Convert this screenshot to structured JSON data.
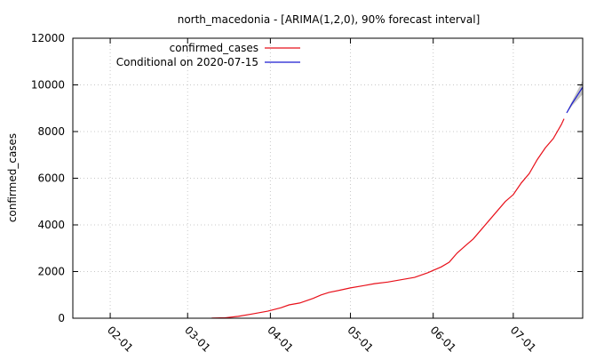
{
  "chart_data": {
    "type": "line",
    "title": "north_macedonia -  [ARIMA(1,2,0), 90% forecast interval]",
    "xlabel": "",
    "ylabel": "confirmed_cases",
    "xlim": [
      "2020-01-18",
      "2020-07-27"
    ],
    "ylim": [
      0,
      12000
    ],
    "y_ticks": [
      0,
      2000,
      4000,
      6000,
      8000,
      10000,
      12000
    ],
    "x_ticks": [
      {
        "date": "2020-02-01",
        "label": "02-01"
      },
      {
        "date": "2020-03-01",
        "label": "03-01"
      },
      {
        "date": "2020-04-01",
        "label": "04-01"
      },
      {
        "date": "2020-05-01",
        "label": "05-01"
      },
      {
        "date": "2020-06-01",
        "label": "06-01"
      },
      {
        "date": "2020-07-01",
        "label": "07-01"
      }
    ],
    "grid": true,
    "legend_position": "top-left",
    "series": [
      {
        "name": "confirmed_cases",
        "color": "#e8101a",
        "points": [
          [
            "2020-03-10",
            5
          ],
          [
            "2020-03-15",
            20
          ],
          [
            "2020-03-20",
            80
          ],
          [
            "2020-03-25",
            180
          ],
          [
            "2020-03-31",
            300
          ],
          [
            "2020-04-05",
            450
          ],
          [
            "2020-04-08",
            570
          ],
          [
            "2020-04-12",
            650
          ],
          [
            "2020-04-17",
            850
          ],
          [
            "2020-04-20",
            1000
          ],
          [
            "2020-04-23",
            1110
          ],
          [
            "2020-04-27",
            1200
          ],
          [
            "2020-05-01",
            1300
          ],
          [
            "2020-05-06",
            1400
          ],
          [
            "2020-05-10",
            1480
          ],
          [
            "2020-05-15",
            1550
          ],
          [
            "2020-05-20",
            1650
          ],
          [
            "2020-05-25",
            1750
          ],
          [
            "2020-05-30",
            1950
          ],
          [
            "2020-06-01",
            2050
          ],
          [
            "2020-06-04",
            2200
          ],
          [
            "2020-06-07",
            2400
          ],
          [
            "2020-06-10",
            2800
          ],
          [
            "2020-06-13",
            3100
          ],
          [
            "2020-06-16",
            3400
          ],
          [
            "2020-06-19",
            3800
          ],
          [
            "2020-06-22",
            4200
          ],
          [
            "2020-06-25",
            4600
          ],
          [
            "2020-06-28",
            5000
          ],
          [
            "2020-07-01",
            5300
          ],
          [
            "2020-07-04",
            5800
          ],
          [
            "2020-07-07",
            6200
          ],
          [
            "2020-07-10",
            6800
          ],
          [
            "2020-07-13",
            7300
          ],
          [
            "2020-07-16",
            7700
          ],
          [
            "2020-07-19",
            8300
          ],
          [
            "2020-07-20",
            8550
          ]
        ]
      },
      {
        "name": "Conditional on 2020-07-15",
        "color": "#1a1ad0",
        "interval_color": "#b4b4b4",
        "points": [
          [
            "2020-07-21",
            8800
          ],
          [
            "2020-07-23",
            9200
          ],
          [
            "2020-07-25",
            9550
          ],
          [
            "2020-07-27",
            9900
          ]
        ],
        "lower": [
          8780,
          9100,
          9350,
          9600
        ],
        "upper": [
          8830,
          9300,
          9750,
          10200
        ]
      }
    ]
  }
}
